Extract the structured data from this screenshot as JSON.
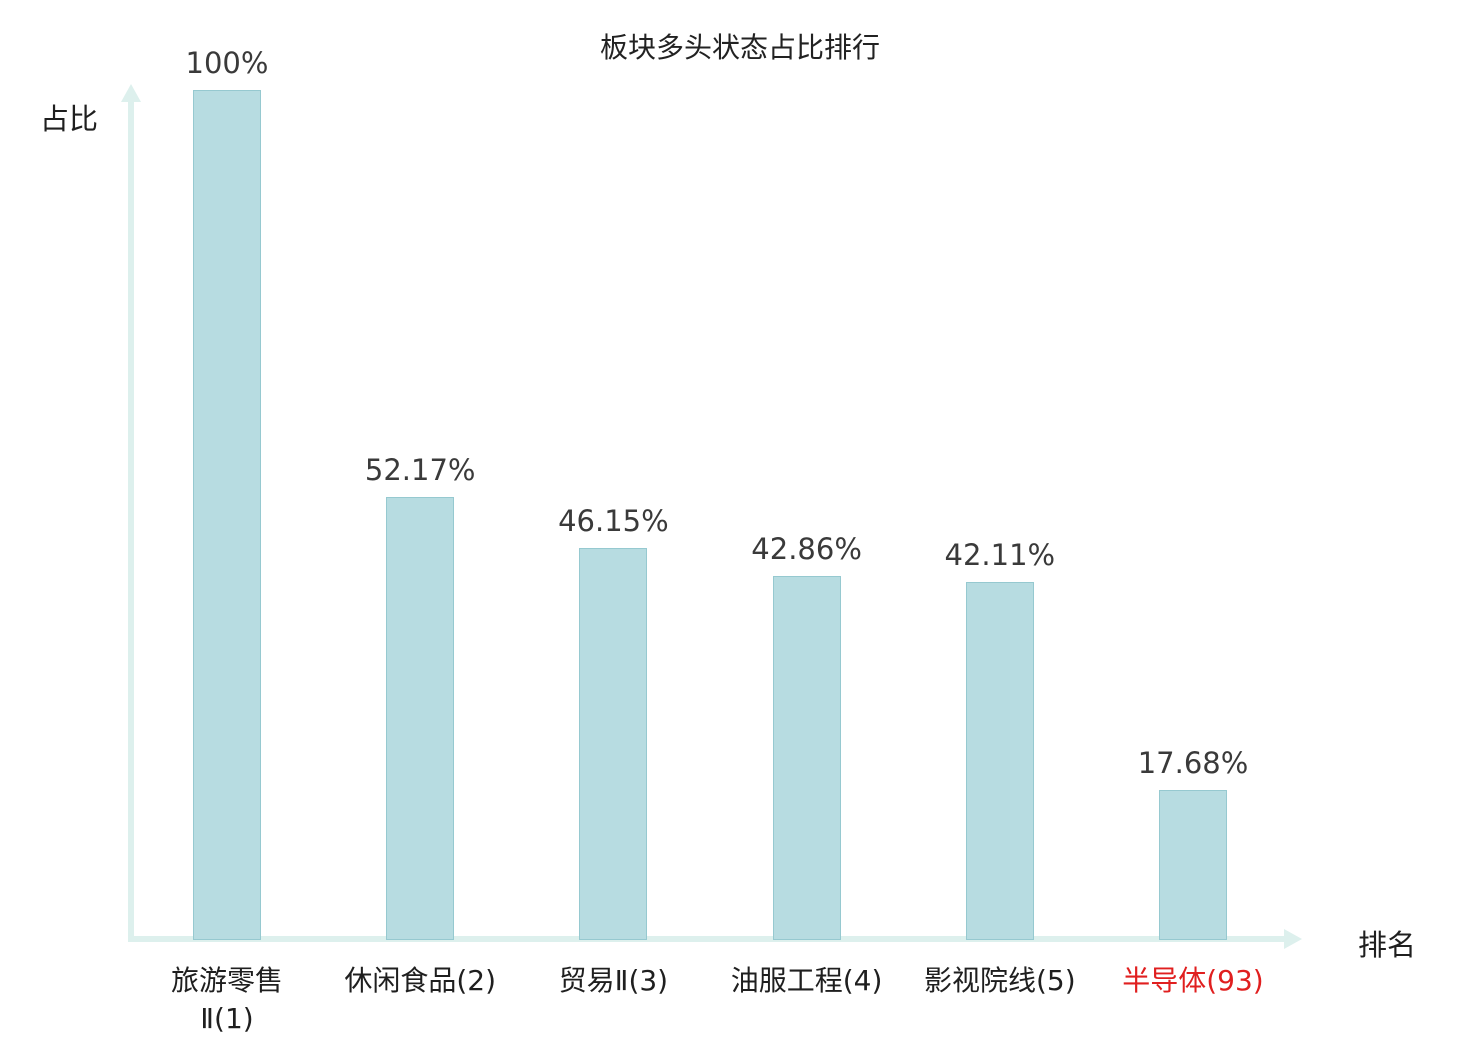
{
  "chart_data": {
    "type": "bar",
    "title": "板块多头状态占比排行",
    "ylabel": "占比",
    "xlabel": "排名",
    "categories": [
      "旅游零售\nⅡ(1)",
      "休闲食品(2)",
      "贸易Ⅱ(3)",
      "油服工程(4)",
      "影视院线(5)",
      "半导体(93)"
    ],
    "values": [
      100,
      52.17,
      46.15,
      42.86,
      42.11,
      17.68
    ],
    "value_labels": [
      "100%",
      "52.17%",
      "46.15%",
      "42.86%",
      "42.11%",
      "17.68%"
    ],
    "ylim": [
      0,
      100
    ],
    "grid": false,
    "legend": false,
    "bar_color": "#b7dce1",
    "bar_border_color": "#96c9d0",
    "axis_color": "#ddf0ed",
    "value_label_color": "#3a3a3a",
    "category_label_color": "#1f1f1f",
    "highlight_index": 5,
    "highlight_color": "#e01f1f"
  }
}
